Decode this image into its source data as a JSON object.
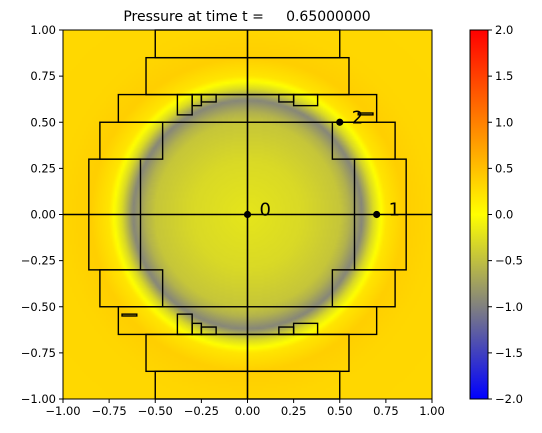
{
  "chart_data": {
    "type": "heatmap",
    "title": "Pressure at time t =     0.65000000",
    "xlabel": "",
    "ylabel": "",
    "xlim": [
      -1.0,
      1.0
    ],
    "ylim": [
      -1.0,
      1.0
    ],
    "x_ticks": [
      -1.0,
      -0.75,
      -0.5,
      -0.25,
      0.0,
      0.25,
      0.5,
      0.75,
      1.0
    ],
    "y_ticks": [
      -1.0,
      -0.75,
      -0.5,
      -0.25,
      0.0,
      0.25,
      0.5,
      0.75,
      1.0
    ],
    "x_tick_labels": [
      "−1.00",
      "−0.75",
      "−0.50",
      "−0.25",
      "0.00",
      "0.25",
      "0.50",
      "0.75",
      "1.00"
    ],
    "y_tick_labels": [
      "−1.00",
      "−0.75",
      "−0.50",
      "−0.25",
      "0.00",
      "0.25",
      "0.50",
      "0.75",
      "1.00"
    ],
    "grid": false,
    "colorbar": {
      "vmin": -2.0,
      "vmax": 2.0,
      "ticks": [
        -2.0,
        -1.5,
        -1.0,
        -0.5,
        0.0,
        0.5,
        1.0,
        1.5,
        2.0
      ],
      "tick_labels": [
        "−2.0",
        "−1.5",
        "−1.0",
        "−0.5",
        "0.0",
        "0.5",
        "1.0",
        "1.5",
        "2.0"
      ],
      "stops": [
        {
          "value": -2.0,
          "color": "#0000ff"
        },
        {
          "value": -1.0,
          "color": "#808080"
        },
        {
          "value": 0.0,
          "color": "#ffff00"
        },
        {
          "value": 1.0,
          "color": "#ff8000"
        },
        {
          "value": 2.0,
          "color": "#ff0000"
        }
      ]
    },
    "field": {
      "description_values": "radial pressure profile p(r)",
      "r": [
        0.0,
        0.3,
        0.5,
        0.55,
        0.62,
        0.68,
        0.75,
        0.85,
        1.0,
        1.5
      ],
      "p": [
        -0.2,
        -0.3,
        -0.45,
        -0.6,
        -0.95,
        -0.3,
        0.2,
        0.38,
        0.32,
        0.3
      ]
    },
    "crosshair": {
      "x": 0.0,
      "y": 0.0
    },
    "gauges": [
      {
        "label": "0",
        "x": 0.0,
        "y": 0.0
      },
      {
        "label": "1",
        "x": 0.7,
        "y": 0.0
      },
      {
        "label": "2",
        "x": 0.5,
        "y": 0.5
      }
    ],
    "patches": [
      [
        -0.5,
        0.85,
        0.5,
        1.0
      ],
      [
        -0.5,
        -0.85,
        0.5,
        -1.0
      ],
      [
        -0.55,
        0.65,
        0.55,
        0.85
      ],
      [
        -0.55,
        -0.65,
        0.55,
        -0.85
      ],
      [
        -0.7,
        0.5,
        0.7,
        0.65
      ],
      [
        -0.7,
        -0.5,
        0.7,
        -0.65
      ],
      [
        -0.8,
        0.3,
        -0.46,
        0.5
      ],
      [
        0.46,
        0.3,
        0.8,
        0.5
      ],
      [
        -0.8,
        -0.3,
        -0.46,
        -0.5
      ],
      [
        0.46,
        -0.3,
        0.8,
        -0.5
      ],
      [
        -0.86,
        -0.3,
        -0.58,
        0.3
      ],
      [
        0.58,
        -0.3,
        0.86,
        0.3
      ],
      [
        -0.38,
        0.54,
        -0.3,
        0.65
      ],
      [
        -0.3,
        0.59,
        -0.25,
        0.65
      ],
      [
        -0.25,
        0.61,
        -0.17,
        0.65
      ],
      [
        0.17,
        0.61,
        0.25,
        0.65
      ],
      [
        0.25,
        0.59,
        0.38,
        0.65
      ],
      [
        -0.38,
        -0.54,
        -0.3,
        -0.65
      ],
      [
        -0.3,
        -0.59,
        -0.25,
        -0.65
      ],
      [
        -0.25,
        -0.61,
        -0.17,
        -0.65
      ],
      [
        0.17,
        -0.61,
        0.25,
        -0.65
      ],
      [
        0.25,
        -0.59,
        0.38,
        -0.65
      ],
      [
        -0.68,
        -0.55,
        -0.6,
        -0.54
      ],
      [
        0.6,
        0.55,
        0.68,
        0.54
      ]
    ]
  }
}
